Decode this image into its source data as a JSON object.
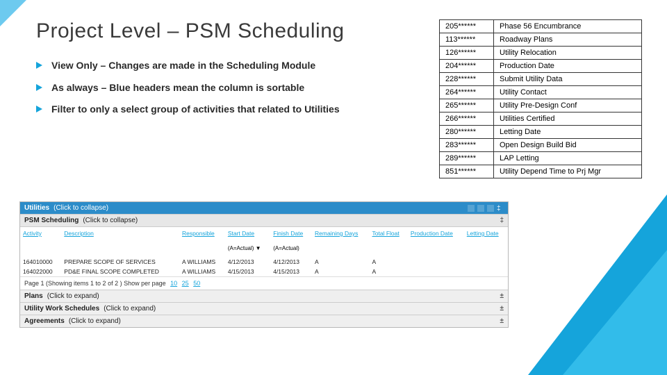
{
  "title": "Project Level – PSM Scheduling",
  "bullets": [
    "View Only – Changes are made in the Scheduling Module",
    "As always – Blue headers mean the column is sortable",
    "Filter to only a select group of activities that related to Utilities"
  ],
  "ref_table": {
    "rows": [
      [
        "205******",
        "Phase 56 Encumbrance"
      ],
      [
        "113******",
        "Roadway Plans"
      ],
      [
        "126******",
        "Utility Relocation"
      ],
      [
        "204******",
        "Production Date"
      ],
      [
        "228******",
        "Submit Utility Data"
      ],
      [
        "264******",
        "Utility Contact"
      ],
      [
        "265******",
        "Utility Pre-Design Conf"
      ],
      [
        "266******",
        "Utilities Certified"
      ],
      [
        "280******",
        "Letting Date"
      ],
      [
        "283******",
        "Open Design Build Bid"
      ],
      [
        "289******",
        "LAP Letting"
      ],
      [
        "851******",
        "Utility Depend Time to Prj Mgr"
      ]
    ]
  },
  "screenshot": {
    "utilities_bar": {
      "name": "Utilities",
      "hint": "(Click to collapse)"
    },
    "psm_bar": {
      "name": "PSM Scheduling",
      "hint": "(Click to collapse)"
    },
    "grid": {
      "headers": [
        "Activity",
        "Description",
        "Responsible",
        "Start Date",
        "Finish Date",
        "Remaining Days",
        "Total Float",
        "Production Date",
        "Letting Date"
      ],
      "subhead": [
        "",
        "",
        "",
        "(A=Actual) ▼",
        "(A=Actual)",
        "",
        "",
        "",
        ""
      ],
      "rows": [
        [
          "164010000",
          "PREPARE SCOPE OF SERVICES",
          "A WILLIAMS",
          "4/12/2013",
          "4/12/2013",
          "A",
          "A",
          "",
          ""
        ],
        [
          "164022000",
          "PD&E FINAL SCOPE COMPLETED",
          "A WILLIAMS",
          "4/15/2013",
          "4/15/2013",
          "A",
          "A",
          "",
          ""
        ]
      ],
      "pager": {
        "label": "Page 1   (Showing items 1 to 2 of 2 )   Show per page",
        "options": [
          "10",
          "25",
          "50"
        ]
      }
    },
    "sections": [
      {
        "name": "Plans",
        "hint": "(Click to expand)"
      },
      {
        "name": "Utility Work Schedules",
        "hint": "(Click to expand)"
      },
      {
        "name": "Agreements",
        "hint": "(Click to expand)"
      }
    ]
  },
  "colors": {
    "accent": "#15a4db"
  }
}
